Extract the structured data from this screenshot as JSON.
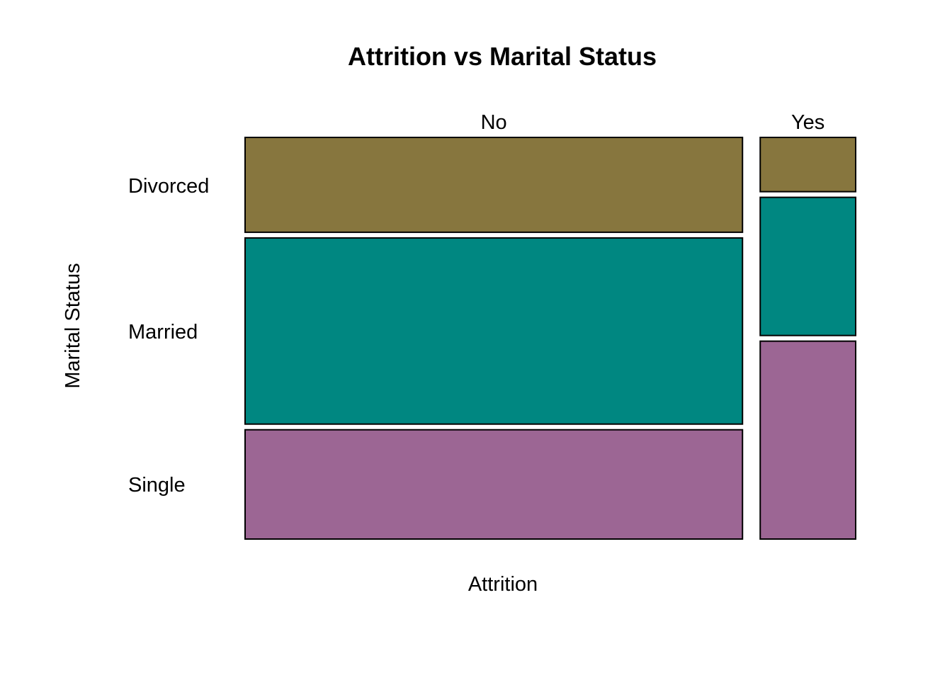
{
  "chart_data": {
    "type": "mosaic",
    "title": "Attrition vs Marital Status",
    "xlabel": "Attrition",
    "ylabel": "Marital Status",
    "x_categories": [
      "No",
      "Yes"
    ],
    "y_categories": [
      "Divorced",
      "Married",
      "Single"
    ],
    "x_proportions": [
      0.839,
      0.161
    ],
    "series": [
      {
        "name": "Divorced",
        "values": [
          0.243,
          0.139
        ],
        "color": "#87763E"
      },
      {
        "name": "Married",
        "values": [
          0.477,
          0.354
        ],
        "color": "#008781"
      },
      {
        "name": "Single",
        "values": [
          0.28,
          0.507
        ],
        "color": "#9C6694"
      }
    ],
    "row_label_proportions": [
      0.246,
      0.474,
      0.28
    ],
    "legend": "none",
    "grid": false
  }
}
